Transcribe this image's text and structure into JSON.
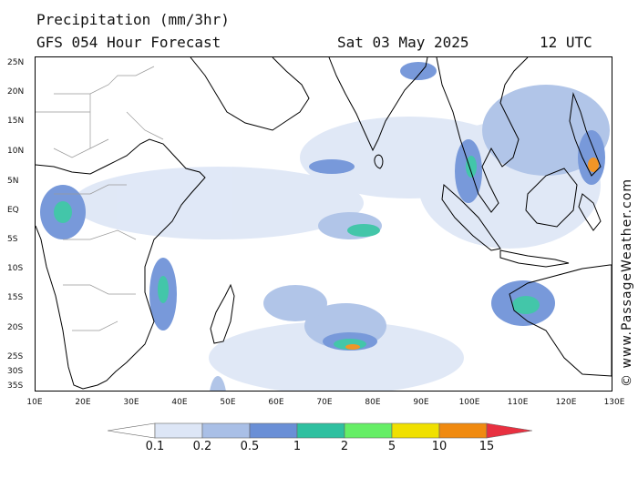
{
  "title": {
    "line1": "Precipitation (mm/3hr)",
    "line2": "GFS 054 Hour Forecast",
    "date": "Sat 03 May 2025",
    "time": "12 UTC"
  },
  "credit": "© www.PassageWeather.com",
  "map": {
    "lon_range": [
      10,
      130
    ],
    "lat_range": [
      -36,
      26
    ],
    "lat_labels": [
      "25N",
      "20N",
      "15N",
      "10N",
      "5N",
      "EQ",
      "5S",
      "10S",
      "15S",
      "20S",
      "25S",
      "30S",
      "35S"
    ],
    "lat_values": [
      25,
      20,
      15,
      10,
      5,
      0,
      -5,
      -10,
      -15,
      -20,
      -25,
      -30,
      -35
    ],
    "lon_labels": [
      "10E",
      "20E",
      "30E",
      "40E",
      "50E",
      "60E",
      "70E",
      "80E",
      "90E",
      "100E",
      "110E",
      "120E",
      "130E"
    ],
    "lon_values": [
      10,
      20,
      30,
      40,
      50,
      60,
      70,
      80,
      90,
      100,
      110,
      120,
      130
    ],
    "land_color": "#ffffff",
    "coast_color": "#000000",
    "border_color": "#999999"
  },
  "legend": {
    "labels": [
      "0.1",
      "0.2",
      "0.5",
      "1",
      "2",
      "5",
      "10",
      "15"
    ],
    "colors": [
      "#ffffff",
      "#dde6f6",
      "#a9bfe6",
      "#6a8fd6",
      "#2fc0a0",
      "#66ee66",
      "#f0e000",
      "#f08a10",
      "#e83040"
    ]
  }
}
